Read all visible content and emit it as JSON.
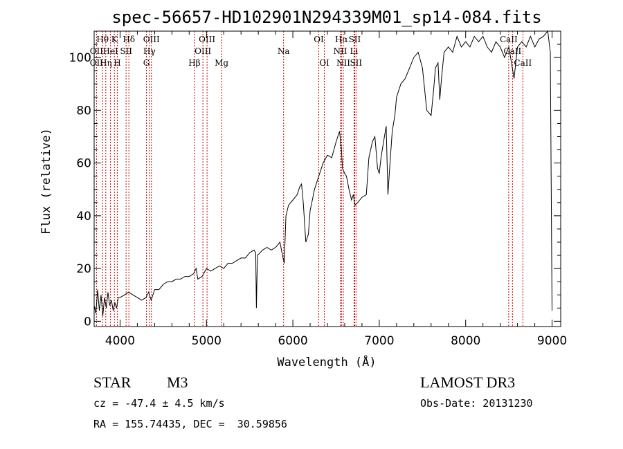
{
  "chart_data": {
    "type": "line",
    "title": "spec-56657-HD102901N294339M01_sp14-084.fits",
    "xlabel": "Wavelength (Å)",
    "ylabel": "Flux (relative)",
    "xlim": [
      3700,
      9100
    ],
    "ylim": [
      -2,
      110
    ],
    "xticks": [
      4000,
      5000,
      6000,
      7000,
      8000,
      9000
    ],
    "yticks": [
      0,
      20,
      40,
      60,
      80,
      100
    ],
    "series": [
      {
        "color": "#000000",
        "x": [
          3700,
          3720,
          3740,
          3760,
          3780,
          3800,
          3820,
          3840,
          3860,
          3880,
          3900,
          3920,
          3940,
          3960,
          3980,
          4000,
          4050,
          4100,
          4150,
          4200,
          4250,
          4300,
          4330,
          4360,
          4400,
          4450,
          4500,
          4550,
          4600,
          4650,
          4700,
          4750,
          4800,
          4850,
          4880,
          4900,
          4950,
          5000,
          5050,
          5100,
          5150,
          5200,
          5250,
          5300,
          5350,
          5400,
          5450,
          5500,
          5550,
          5570,
          5578,
          5590,
          5620,
          5650,
          5700,
          5750,
          5800,
          5850,
          5880,
          5900,
          5920,
          5950,
          6000,
          6050,
          6080,
          6100,
          6120,
          6150,
          6180,
          6200,
          6220,
          6250,
          6300,
          6350,
          6400,
          6450,
          6500,
          6540,
          6560,
          6575,
          6600,
          6620,
          6650,
          6680,
          6700,
          6720,
          6750,
          6800,
          6850,
          6880,
          6900,
          6920,
          6950,
          6980,
          7000,
          7020,
          7050,
          7080,
          7100,
          7120,
          7150,
          7180,
          7200,
          7250,
          7300,
          7350,
          7400,
          7450,
          7500,
          7550,
          7600,
          7630,
          7650,
          7680,
          7700,
          7720,
          7750,
          7800,
          7850,
          7900,
          7950,
          8000,
          8050,
          8100,
          8150,
          8200,
          8250,
          8300,
          8350,
          8400,
          8450,
          8500,
          8530,
          8560,
          8600,
          8650,
          8700,
          8750,
          8800,
          8850,
          8900,
          8950,
          8980,
          9000
        ],
        "values": [
          6,
          3,
          12,
          4,
          10,
          2,
          9,
          5,
          11,
          6,
          8,
          4,
          7,
          5,
          9,
          9,
          10,
          11,
          10,
          9,
          8,
          9,
          11,
          8,
          12,
          12,
          14,
          15,
          15,
          16,
          16,
          17,
          17,
          18,
          20,
          16,
          17,
          20,
          19,
          20,
          21,
          20,
          22,
          22,
          23,
          24,
          24,
          26,
          27,
          26,
          5,
          25,
          26,
          27,
          28,
          27,
          28,
          30,
          25,
          22,
          40,
          44,
          46,
          48,
          51,
          52,
          45,
          30,
          33,
          42,
          45,
          50,
          55,
          60,
          63,
          62,
          68,
          72,
          66,
          58,
          56,
          55,
          50,
          46,
          48,
          44,
          45,
          47,
          48,
          62,
          65,
          68,
          70,
          58,
          56,
          62,
          68,
          74,
          48,
          58,
          72,
          78,
          85,
          90,
          92,
          96,
          100,
          102,
          96,
          80,
          78,
          88,
          96,
          98,
          84,
          92,
          102,
          104,
          102,
          108,
          104,
          106,
          104,
          108,
          106,
          108,
          104,
          102,
          106,
          104,
          100,
          104,
          98,
          92,
          104,
          106,
          104,
          108,
          104,
          107,
          108,
          110,
          102,
          4
        ]
      }
    ],
    "line_labels": [
      {
        "text": "Hθ",
        "wl": 3798,
        "row": 1
      },
      {
        "text": "OII",
        "wl": 3727,
        "row": 2
      },
      {
        "text": "OII",
        "wl": 3727,
        "row": 3
      },
      {
        "text": "K",
        "wl": 3934,
        "row": 1
      },
      {
        "text": "HeI",
        "wl": 3889,
        "row": 2
      },
      {
        "text": "Hη",
        "wl": 3835,
        "row": 3
      },
      {
        "text": "H",
        "wl": 3968,
        "row": 3
      },
      {
        "text": "Hδ",
        "wl": 4102,
        "row": 1
      },
      {
        "text": "SII",
        "wl": 4070,
        "row": 2
      },
      {
        "text": "OIII",
        "wl": 4363,
        "row": 1
      },
      {
        "text": "Hγ",
        "wl": 4340,
        "row": 2
      },
      {
        "text": "G",
        "wl": 4305,
        "row": 3
      },
      {
        "text": "OIII",
        "wl": 5007,
        "row": 1
      },
      {
        "text": "OIII",
        "wl": 4959,
        "row": 2
      },
      {
        "text": "Hβ",
        "wl": 4861,
        "row": 3
      },
      {
        "text": "Mg",
        "wl": 5175,
        "row": 3
      },
      {
        "text": "Na",
        "wl": 5893,
        "row": 2
      },
      {
        "text": "OI",
        "wl": 6300,
        "row": 1
      },
      {
        "text": "OI",
        "wl": 6364,
        "row": 3
      },
      {
        "text": "Hα",
        "wl": 6563,
        "row": 1
      },
      {
        "text": "SII",
        "wl": 6716,
        "row": 1
      },
      {
        "text": "NII",
        "wl": 6548,
        "row": 2
      },
      {
        "text": "Li",
        "wl": 6708,
        "row": 2
      },
      {
        "text": "NII",
        "wl": 6584,
        "row": 3
      },
      {
        "text": "SII",
        "wl": 6731,
        "row": 3
      },
      {
        "text": "CaII",
        "wl": 8498,
        "row": 1
      },
      {
        "text": "CaII",
        "wl": 8542,
        "row": 2
      },
      {
        "text": "CaII",
        "wl": 8662,
        "row": 3
      }
    ],
    "line_marker_color": "#cc0000"
  },
  "info": {
    "object_class": "STAR",
    "subclass": "M3",
    "survey": "LAMOST DR3",
    "cz": "cz = -47.4 ± 4.5 km/s",
    "obs_date": "Obs-Date: 20131230",
    "coords": "RA = 155.74435, DEC =  30.59856"
  }
}
